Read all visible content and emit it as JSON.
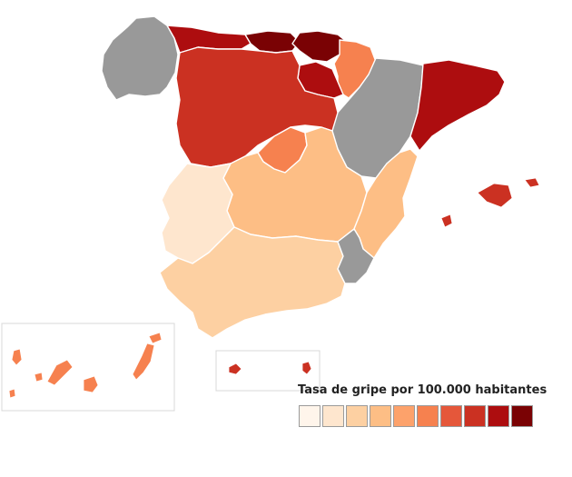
{
  "legend": {
    "title": "Tasa de gripe por 100.000 habitantes",
    "scale": [
      "#fff5eb",
      "#fee6ce",
      "#fdd0a2",
      "#fdbe85",
      "#fda26b",
      "#f6814f",
      "#e5573a",
      "#cb3122",
      "#ad0d0f",
      "#7a0204"
    ]
  },
  "regions": [
    {
      "name": "Galicia",
      "fill": "#999999",
      "no_data": true
    },
    {
      "name": "Asturias",
      "fill": "#ad0d0f"
    },
    {
      "name": "Cantabria",
      "fill": "#7a0204"
    },
    {
      "name": "País Vasco",
      "fill": "#7a0204"
    },
    {
      "name": "Navarra",
      "fill": "#f6814f"
    },
    {
      "name": "La Rioja",
      "fill": "#ad0d0f"
    },
    {
      "name": "Aragón",
      "fill": "#999999",
      "no_data": true
    },
    {
      "name": "Cataluña",
      "fill": "#ad0d0f"
    },
    {
      "name": "Castilla y León",
      "fill": "#cb3122"
    },
    {
      "name": "Comunidad de Madrid",
      "fill": "#f6814f"
    },
    {
      "name": "Castilla-La Mancha",
      "fill": "#fdbe85"
    },
    {
      "name": "Comunidad Valenciana",
      "fill": "#fdbe85"
    },
    {
      "name": "Extremadura",
      "fill": "#fee6ce"
    },
    {
      "name": "Andalucía",
      "fill": "#fdd0a2"
    },
    {
      "name": "Región de Murcia",
      "fill": "#999999",
      "no_data": true
    },
    {
      "name": "Islas Baleares",
      "fill": "#cb3122"
    },
    {
      "name": "Canarias",
      "fill": "#f6814f"
    },
    {
      "name": "Ceuta",
      "fill": "#cb3122"
    },
    {
      "name": "Melilla",
      "fill": "#cb3122"
    }
  ]
}
